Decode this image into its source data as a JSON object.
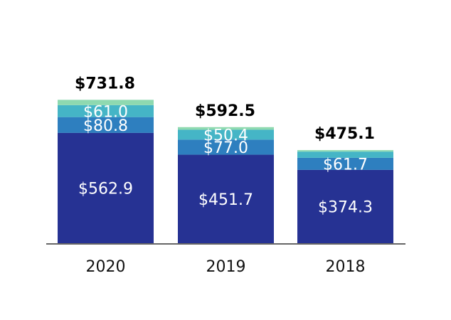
{
  "chart_data": {
    "type": "bar",
    "stacked": true,
    "categories": [
      "2020",
      "2019",
      "2018"
    ],
    "series": [
      {
        "values": [
          562.9,
          451.7,
          374.3
        ],
        "color": "#263293",
        "labels": [
          "$562.9",
          "$451.7",
          "$374.3"
        ]
      },
      {
        "values": [
          80.8,
          77.0,
          61.7
        ],
        "color": "#2E7FBF",
        "labels": [
          "$80.8",
          "$77.0",
          "$61.7"
        ]
      },
      {
        "values": [
          61.0,
          50.4,
          31.6
        ],
        "color": "#45B5C6",
        "labels": [
          "$61.0",
          "$50.4",
          ""
        ]
      },
      {
        "values": [
          27.1,
          13.4,
          7.5
        ],
        "color": "#8ED9B0",
        "labels": [
          "",
          "",
          ""
        ]
      }
    ],
    "totals": [
      731.8,
      592.5,
      475.1
    ],
    "total_labels": [
      "$731.8",
      "$592.5",
      "$475.1"
    ],
    "ylim": [
      0,
      800
    ],
    "grid": false,
    "legend": "none",
    "axis_color": "#666666"
  }
}
